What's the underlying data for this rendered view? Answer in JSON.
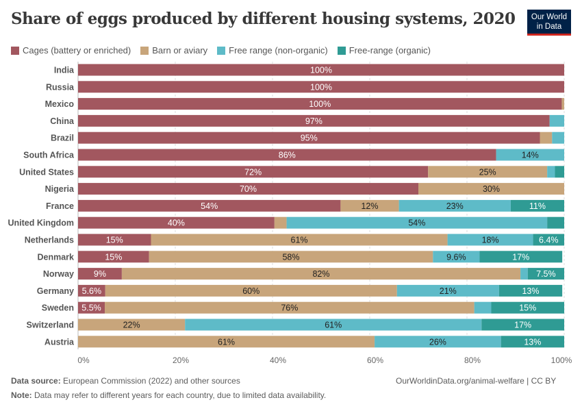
{
  "title": "Share of eggs produced by different housing systems, 2020",
  "logo": {
    "line1": "Our World",
    "line2": "in Data"
  },
  "footer": {
    "source_label": "Data source:",
    "source_text": "European Commission (2022) and other sources",
    "url": "OurWorldinData.org/animal-welfare | CC BY",
    "note_label": "Note:",
    "note_text": "Data may refer to different years for each country, due to limited data availability."
  },
  "chart_data": {
    "type": "bar",
    "orientation": "horizontal",
    "stacked": true,
    "title": "Share of eggs produced by different housing systems, 2020",
    "xlim": [
      0,
      100
    ],
    "x_ticks": [
      "0%",
      "20%",
      "40%",
      "60%",
      "80%",
      "100%"
    ],
    "grid": "vertical dashed",
    "legend_position": "top",
    "categories": [
      "India",
      "Russia",
      "Mexico",
      "China",
      "Brazil",
      "South Africa",
      "United States",
      "Nigeria",
      "France",
      "United Kingdom",
      "Netherlands",
      "Denmark",
      "Norway",
      "Germany",
      "Sweden",
      "Switzerland",
      "Austria"
    ],
    "series": [
      {
        "name": "Cages (battery or enriched)",
        "color": "#a2575f",
        "text_color": "#ffffff",
        "values": [
          100,
          100,
          99.5,
          97,
          95,
          86,
          72,
          70,
          54,
          40.4,
          15,
          14.6,
          9,
          5.6,
          5.5,
          0,
          0
        ],
        "labels": [
          "100%",
          "100%",
          "100%",
          "97%",
          "95%",
          "86%",
          "72%",
          "70%",
          "54%",
          "40%",
          "15%",
          "15%",
          "9%",
          "5.6%",
          "5.5%",
          "",
          ""
        ]
      },
      {
        "name": "Barn or aviary",
        "color": "#c8a57b",
        "text_color": "#222222",
        "values": [
          0,
          0,
          0.5,
          0,
          2.5,
          0,
          24.5,
          30,
          12,
          2.5,
          61,
          58.4,
          82,
          60,
          76,
          22,
          61
        ],
        "labels": [
          "",
          "",
          "",
          "",
          "",
          "",
          "25%",
          "30%",
          "12%",
          "",
          "61%",
          "58%",
          "82%",
          "60%",
          "76%",
          "22%",
          "61%"
        ]
      },
      {
        "name": "Free range (non-organic)",
        "color": "#5ebbc8",
        "text_color": "#222222",
        "values": [
          0,
          0,
          0,
          3,
          2.5,
          14,
          1.6,
          0,
          23,
          53.6,
          17.6,
          9.6,
          1.5,
          21,
          3.5,
          61,
          26
        ],
        "labels": [
          "",
          "",
          "",
          "",
          "",
          "14%",
          "",
          "",
          "23%",
          "54%",
          "18%",
          "9.6%",
          "",
          "21%",
          "",
          "61%",
          "26%"
        ]
      },
      {
        "name": "Free-range (organic)",
        "color": "#2f9b94",
        "text_color": "#ffffff",
        "values": [
          0,
          0,
          0,
          0,
          0,
          0,
          1.9,
          0,
          11,
          3.5,
          6.4,
          17,
          7.5,
          13,
          15,
          17,
          13
        ],
        "labels": [
          "",
          "",
          "",
          "",
          "",
          "",
          "",
          "",
          "11%",
          "",
          "6.4%",
          "17%",
          "7.5%",
          "13%",
          "15%",
          "17%",
          "13%"
        ]
      }
    ]
  }
}
